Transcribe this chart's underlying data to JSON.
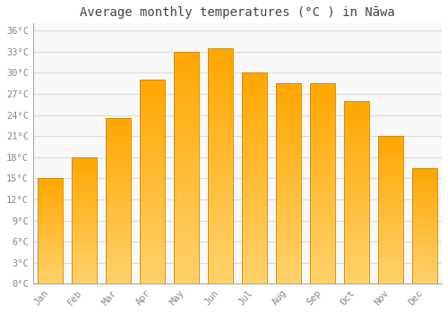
{
  "title": "Average monthly temperatures (°C ) in Nāwa",
  "months": [
    "Jan",
    "Feb",
    "Mar",
    "Apr",
    "May",
    "Jun",
    "Jul",
    "Aug",
    "Sep",
    "Oct",
    "Nov",
    "Dec"
  ],
  "values": [
    15,
    18,
    23.5,
    29,
    33,
    33.5,
    30,
    28.5,
    28.5,
    26,
    21,
    16.5
  ],
  "bar_color_top": "#FFA500",
  "bar_color_bottom": "#FFD070",
  "bar_edge_color": "#CC8800",
  "background_color": "#FFFFFF",
  "plot_bg_color": "#F8F8F8",
  "grid_color": "#DDDDDD",
  "ylim": [
    0,
    37
  ],
  "yticks": [
    0,
    3,
    6,
    9,
    12,
    15,
    18,
    21,
    24,
    27,
    30,
    33,
    36
  ],
  "ytick_labels": [
    "0°C",
    "3°C",
    "6°C",
    "9°C",
    "12°C",
    "15°C",
    "18°C",
    "21°C",
    "24°C",
    "27°C",
    "30°C",
    "33°C",
    "36°C"
  ],
  "tick_color": "#888888",
  "tick_fontsize": 7.5,
  "title_fontsize": 10,
  "title_color": "#444444",
  "font_family": "monospace",
  "bar_width": 0.75
}
